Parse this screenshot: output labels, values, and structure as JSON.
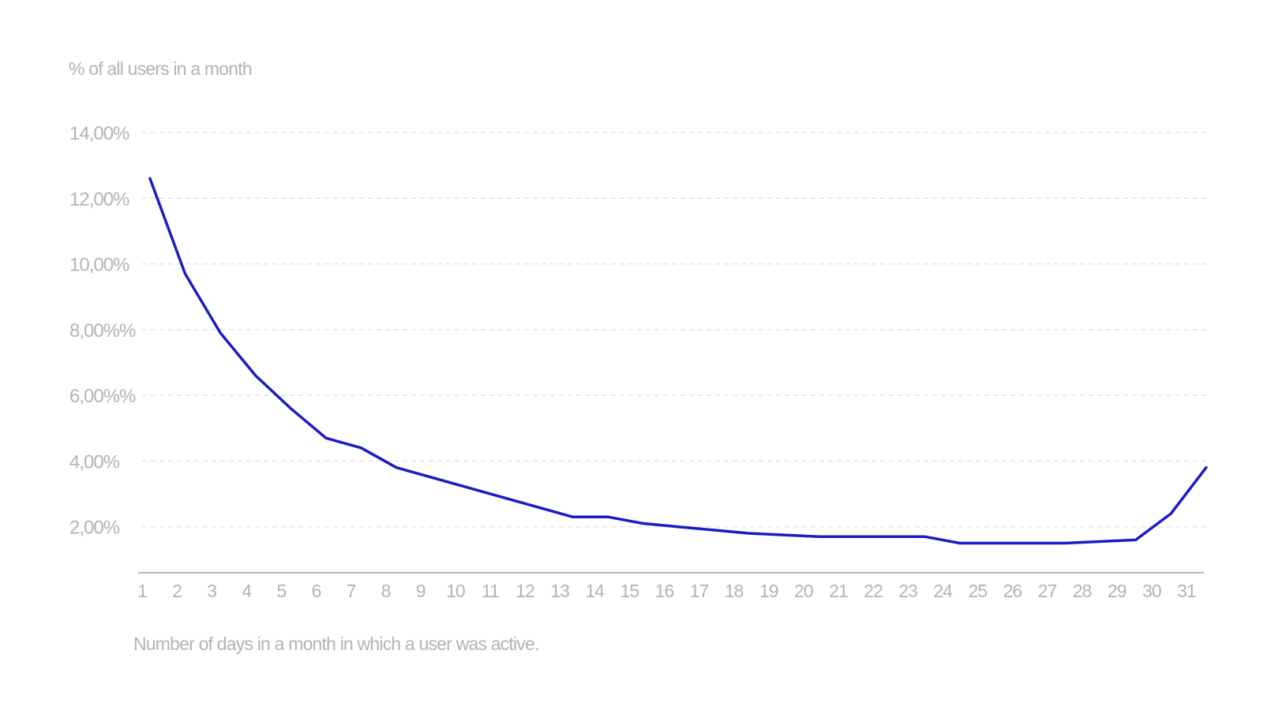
{
  "chart_data": {
    "type": "line",
    "ylabel": "% of all users in a month",
    "xlabel": "Number of days in a month in which a user was active.",
    "x": [
      1,
      2,
      3,
      4,
      5,
      6,
      7,
      8,
      9,
      10,
      11,
      12,
      13,
      14,
      15,
      16,
      17,
      18,
      19,
      20,
      21,
      22,
      23,
      24,
      25,
      26,
      27,
      28,
      29,
      30,
      31
    ],
    "xtick_labels": [
      "1",
      "2",
      "3",
      "4",
      "5",
      "6",
      "7",
      "8",
      "9",
      "10",
      "11",
      "12",
      "13",
      "14",
      "15",
      "16",
      "17",
      "18",
      "19",
      "20",
      "21",
      "22",
      "23",
      "24",
      "25",
      "26",
      "27",
      "28",
      "29",
      "30",
      "31"
    ],
    "yticks": [
      2,
      4,
      6,
      8,
      10,
      12,
      14
    ],
    "ytick_labels": [
      "2,00%",
      "4,00%",
      "6,00%%",
      "8,00%%",
      "10,00%",
      "12,00%",
      "14,00%"
    ],
    "ylim": [
      0.6,
      14
    ],
    "grid": true,
    "series": [
      {
        "color": "#1c1cc0",
        "values": [
          12.6,
          9.7,
          7.9,
          6.6,
          5.6,
          4.7,
          4.4,
          3.8,
          3.5,
          3.2,
          2.9,
          2.6,
          2.3,
          2.3,
          2.1,
          2.0,
          1.9,
          1.8,
          1.75,
          1.7,
          1.7,
          1.7,
          1.7,
          1.5,
          1.5,
          1.5,
          1.5,
          1.55,
          1.6,
          2.4,
          3.8
        ]
      }
    ]
  }
}
